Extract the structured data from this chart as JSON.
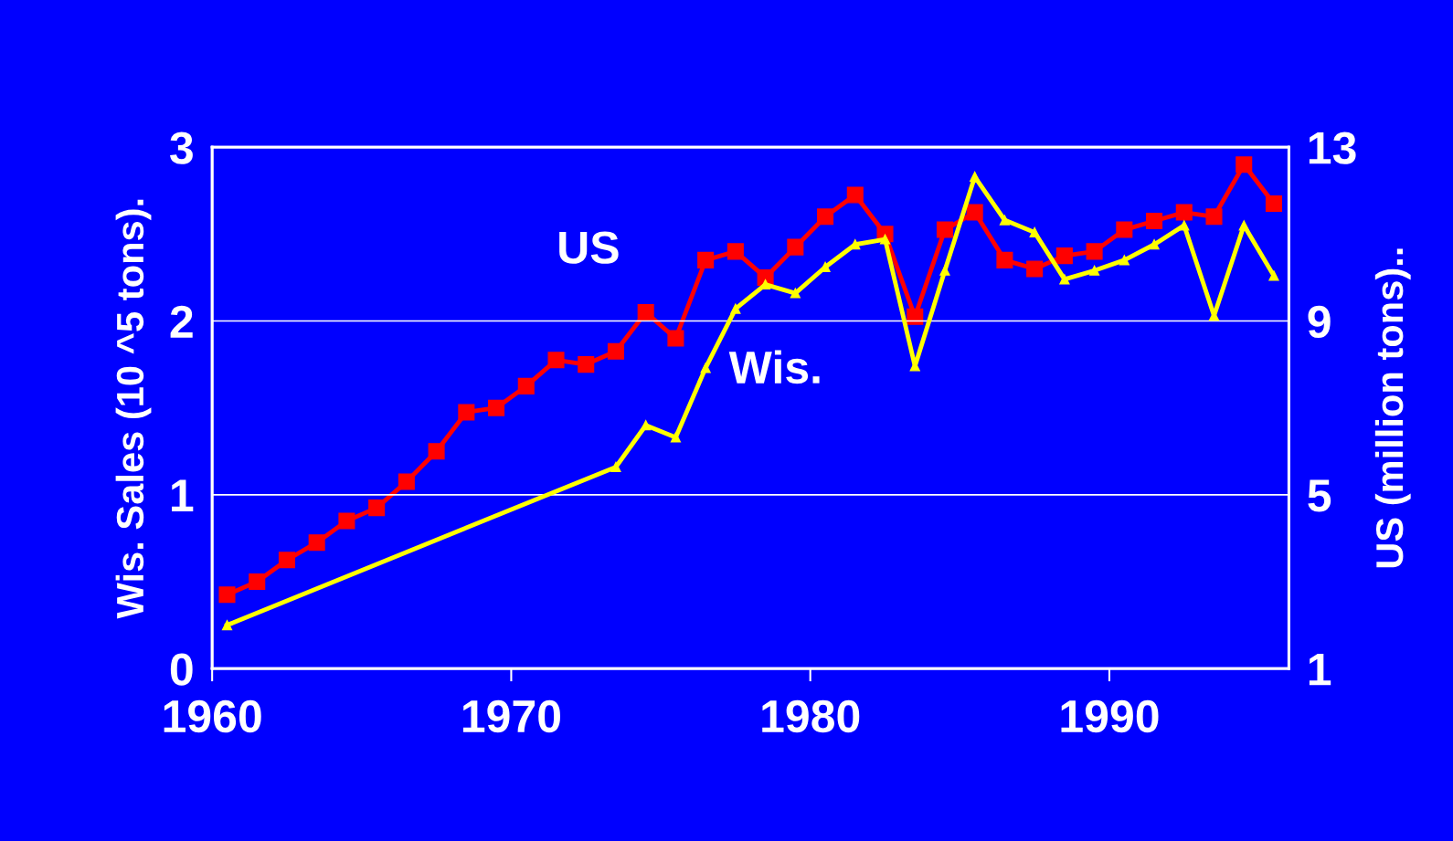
{
  "chart_data": {
    "type": "line",
    "xlabel": null,
    "ylabel": "Wis. Sales (10 ^5 tons).",
    "y2label": "US (million tons)..",
    "xlim": [
      1960,
      1996
    ],
    "xticks": [
      1960,
      1970,
      1980,
      1990
    ],
    "ylim": [
      0,
      3
    ],
    "yticks": [
      0,
      1,
      2,
      3
    ],
    "y2lim": [
      1,
      13
    ],
    "y2ticks": [
      1,
      5,
      9,
      13
    ],
    "grid": "y",
    "legend": false,
    "line_style": "solid",
    "series": [
      {
        "name": "US",
        "color": "#ff0000",
        "axis": "y2",
        "marker": "square",
        "x": [
          1960.5,
          1961.5,
          1962.5,
          1963.5,
          1964.5,
          1965.5,
          1966.5,
          1967.5,
          1968.5,
          1969.5,
          1970.5,
          1971.5,
          1972.5,
          1973.5,
          1974.5,
          1975.5,
          1976.5,
          1977.5,
          1978.5,
          1979.5,
          1980.5,
          1981.5,
          1982.5,
          1983.5,
          1984.5,
          1985.5,
          1986.5,
          1987.5,
          1988.5,
          1989.5,
          1990.5,
          1991.5,
          1992.5,
          1993.5,
          1994.5,
          1995.5
        ],
        "values": [
          2.7,
          3.0,
          3.5,
          3.9,
          4.4,
          4.7,
          5.3,
          6.0,
          6.9,
          7.0,
          7.5,
          8.1,
          8.0,
          8.3,
          9.2,
          8.6,
          10.4,
          10.6,
          10.0,
          10.7,
          11.4,
          11.9,
          11.0,
          9.1,
          11.1,
          11.5,
          10.4,
          10.2,
          10.5,
          10.6,
          11.1,
          11.3,
          11.5,
          11.4,
          12.6,
          11.7
        ]
      },
      {
        "name": "Wis.",
        "color": "#ffff00",
        "axis": "y",
        "marker": "triangle",
        "x": [
          1960.5,
          1973.5,
          1974.5,
          1975.5,
          1976.5,
          1977.5,
          1978.5,
          1979.5,
          1980.5,
          1981.5,
          1982.5,
          1983.5,
          1984.5,
          1985.5,
          1986.5,
          1987.5,
          1988.5,
          1989.5,
          1990.5,
          1991.5,
          1992.5,
          1993.5,
          1994.5,
          1995.5
        ],
        "values": [
          0.25,
          1.16,
          1.4,
          1.33,
          1.73,
          2.07,
          2.21,
          2.16,
          2.31,
          2.44,
          2.47,
          1.74,
          2.29,
          2.83,
          2.58,
          2.51,
          2.24,
          2.29,
          2.35,
          2.44,
          2.55,
          2.03,
          2.55,
          2.26
        ]
      }
    ]
  }
}
